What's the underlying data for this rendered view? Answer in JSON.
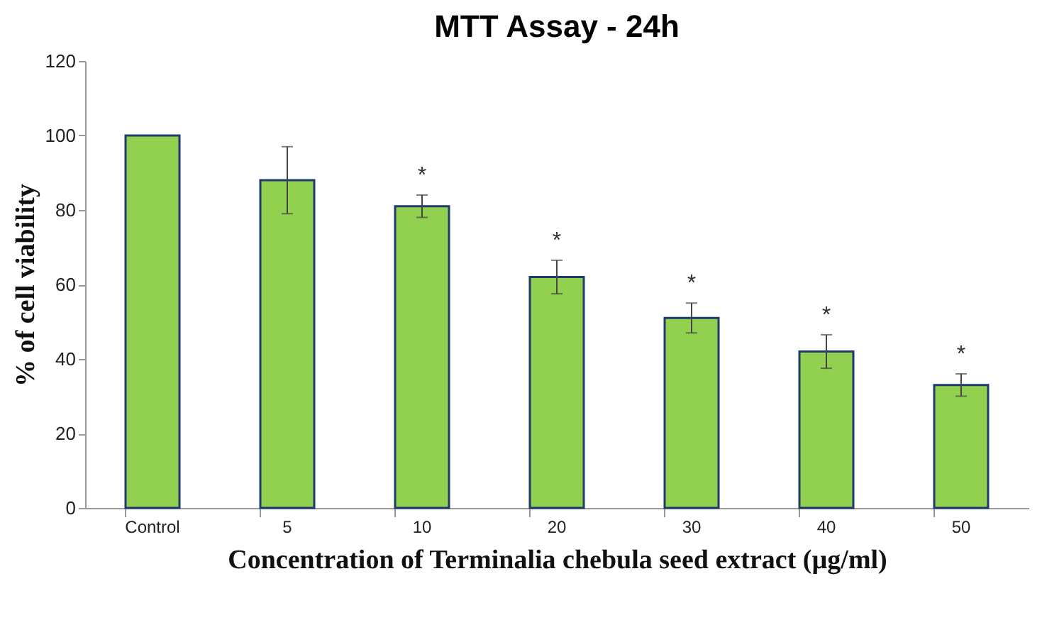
{
  "chart_data": {
    "type": "bar",
    "title": "MTT Assay - 24h",
    "xlabel": "Concentration of Terminalia chebula seed extract (µg/ml)",
    "ylabel": "% of cell viability",
    "categories": [
      "Control",
      "5",
      "10",
      "20",
      "30",
      "40",
      "50"
    ],
    "values": [
      100,
      88,
      81,
      62,
      51,
      42,
      33
    ],
    "errors": [
      null,
      9,
      3,
      4.5,
      4,
      4.5,
      3
    ],
    "color": "#92d050",
    "ylim": [
      0,
      120
    ],
    "yticks": [
      0,
      20,
      40,
      60,
      80,
      100,
      120
    ],
    "grid": false,
    "annotations": [
      "*",
      "*",
      "*",
      "*",
      "*"
    ]
  }
}
